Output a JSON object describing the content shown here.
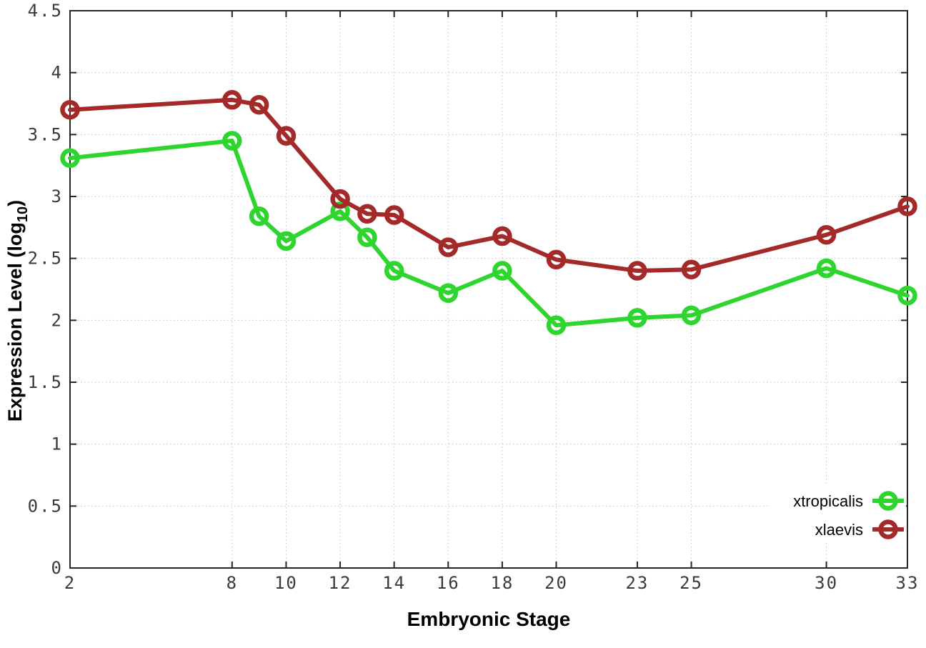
{
  "chart_data": {
    "type": "line",
    "title": "",
    "xlabel": "Embryonic Stage",
    "ylabel": "Expression Level (log10)",
    "ylabel_parts": {
      "pre": "Expression Level (log",
      "sub": "10",
      "post": ")"
    },
    "xlim": [
      2,
      33
    ],
    "ylim": [
      0,
      4.5
    ],
    "x": [
      2,
      8,
      9,
      10,
      12,
      13,
      14,
      16,
      18,
      20,
      23,
      25,
      30,
      33
    ],
    "xticks": [
      "2",
      "8",
      "10",
      "12",
      "14",
      "16",
      "18",
      "20",
      "23",
      "25",
      "30",
      "33"
    ],
    "yticks": [
      "0",
      "0.5",
      "1",
      "1.5",
      "2",
      "2.5",
      "3",
      "3.5",
      "4",
      "4.5"
    ],
    "grid": true,
    "legend_position": "inside bottom-right",
    "series": [
      {
        "name": "xtropicalis",
        "color": "#2fd52f",
        "marker": "open-circle",
        "values": [
          3.31,
          3.45,
          2.84,
          2.64,
          2.88,
          2.67,
          2.4,
          2.22,
          2.4,
          1.96,
          2.02,
          2.04,
          2.42,
          2.2
        ]
      },
      {
        "name": "xlaevis",
        "color": "#a42a2a",
        "marker": "open-circle",
        "values": [
          3.7,
          3.78,
          3.74,
          3.49,
          2.98,
          2.86,
          2.85,
          2.59,
          2.68,
          2.49,
          2.4,
          2.41,
          2.69,
          2.92
        ]
      }
    ]
  },
  "style": {
    "background": "#ffffff",
    "axis_color": "#262626",
    "tick_label_color": "#3a3a3a",
    "grid_color": "#c4c4c4",
    "title_color": "#000000",
    "line_width": 6,
    "marker_radius": 10.5,
    "marker_stroke": 6.5
  }
}
